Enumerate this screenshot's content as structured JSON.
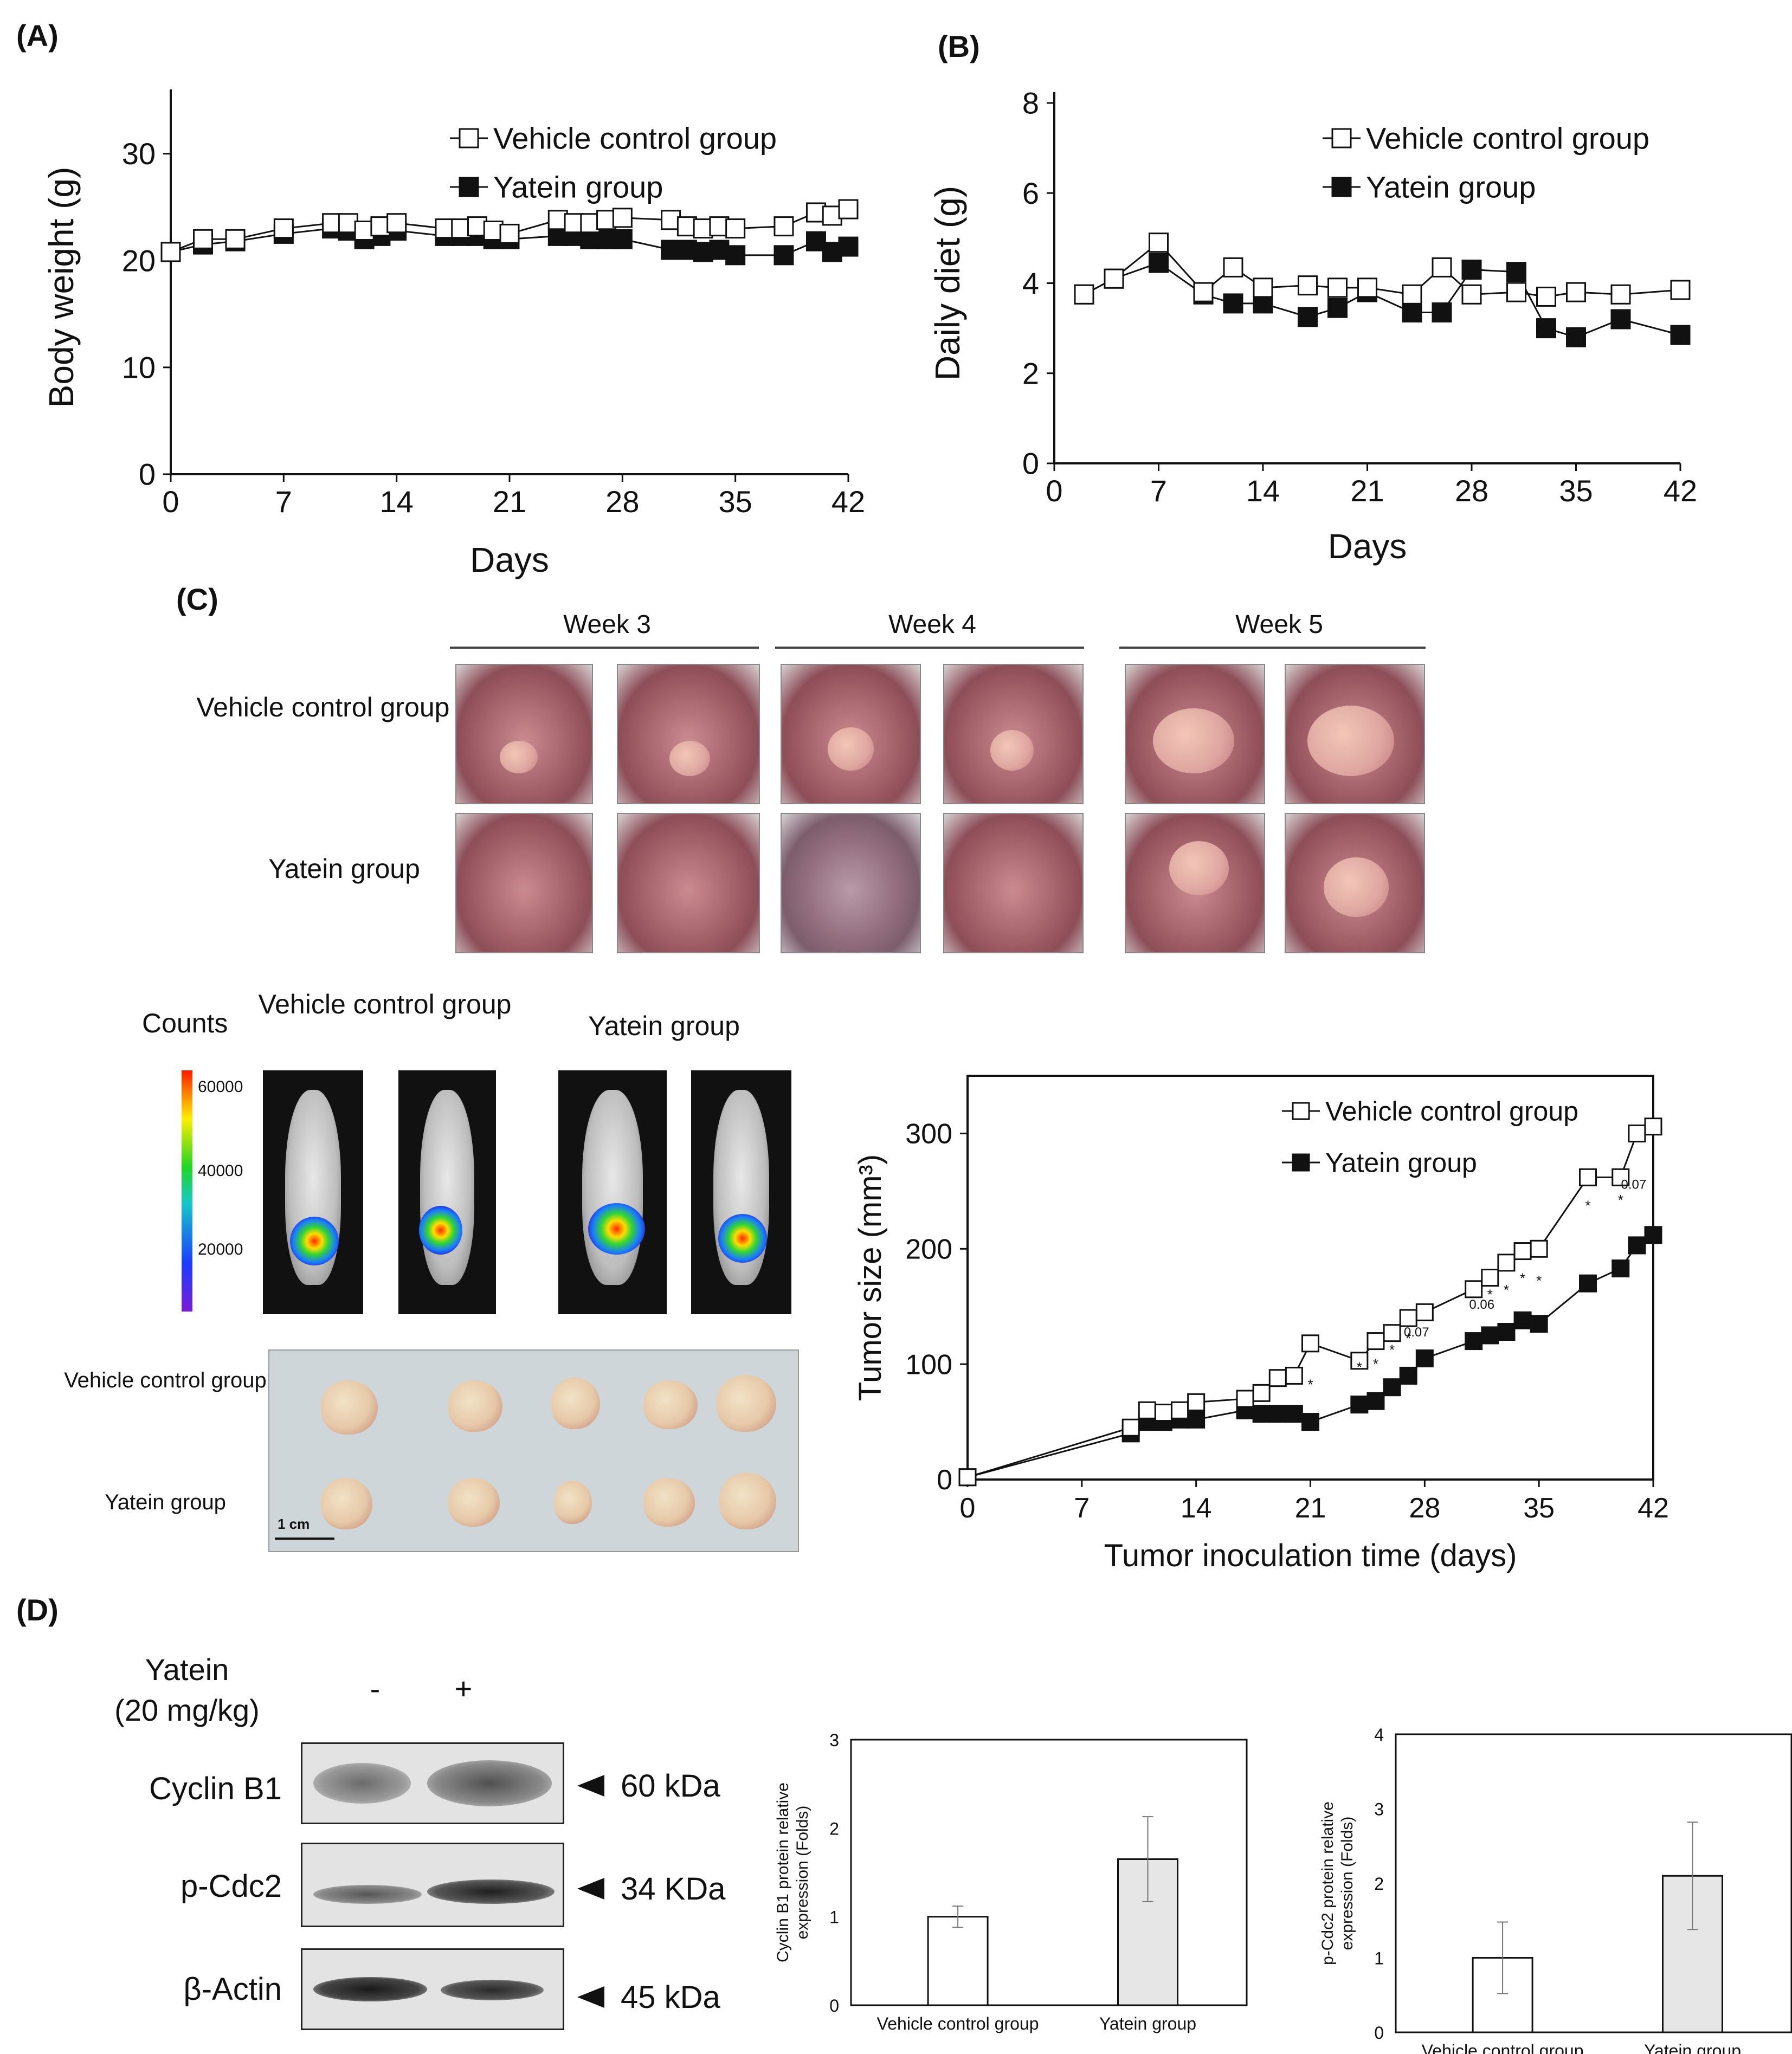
{
  "panel_labels": {
    "A": "(A)",
    "B": "(B)",
    "C": "(C)",
    "D": "(D)"
  },
  "legend": {
    "vehicle": "Vehicle control group",
    "yatein": "Yatein group"
  },
  "panel_c": {
    "weeks": [
      "Week 3",
      "Week 4",
      "Week 5"
    ],
    "rows": [
      "Vehicle  control group",
      "Yatein group"
    ],
    "ivis_title_vehicle": "Vehicle control group",
    "ivis_title_yatein": "Yatein group",
    "counts_label": "Counts",
    "colorbar_ticks": [
      "60000",
      "40000",
      "20000"
    ],
    "tumor_rows": [
      "Vehicle control group",
      "Yatein group"
    ],
    "scale_bar": "1 cm"
  },
  "panel_d": {
    "treatment_label_1": "Yatein",
    "treatment_label_2": "(20 mg/kg)",
    "minus": "-",
    "plus": "+",
    "blots": [
      {
        "name": "Cyclin B1",
        "marker": "60 kDa"
      },
      {
        "name": "p-Cdc2",
        "marker": "34 KDa"
      },
      {
        "name": "β-Actin",
        "marker": "45 kDa"
      }
    ]
  },
  "chart_data": [
    {
      "type": "line",
      "ylabel": "Body weight (g)",
      "xlabel": "Days",
      "xlim": [
        0,
        42
      ],
      "ylim": [
        0,
        35
      ],
      "xticks": [
        0,
        7,
        14,
        21,
        28,
        35,
        42
      ],
      "yticks": [
        0,
        10,
        20,
        30
      ],
      "legend_position": "top-right",
      "series": [
        {
          "name": "Vehicle control group",
          "marker": "open-square",
          "x": [
            0,
            2,
            4,
            7,
            10,
            11,
            12,
            13,
            14,
            17,
            18,
            19,
            20,
            21,
            24,
            25,
            26,
            27,
            28,
            31,
            32,
            33,
            34,
            35,
            38,
            40,
            41,
            42
          ],
          "y": [
            20.8,
            22.0,
            22.0,
            23.0,
            23.5,
            23.5,
            22.8,
            23.2,
            23.5,
            23.0,
            23.0,
            23.2,
            22.8,
            22.5,
            23.8,
            23.5,
            23.5,
            23.8,
            24.0,
            23.8,
            23.2,
            23.0,
            23.2,
            23.0,
            23.2,
            24.5,
            24.2,
            24.8
          ]
        },
        {
          "name": "Yatein group",
          "marker": "filled-square",
          "x": [
            0,
            2,
            4,
            7,
            10,
            11,
            12,
            13,
            14,
            17,
            18,
            19,
            20,
            21,
            24,
            25,
            26,
            27,
            28,
            31,
            32,
            33,
            34,
            35,
            38,
            40,
            41,
            42
          ],
          "y": [
            20.8,
            21.5,
            21.8,
            22.5,
            23.0,
            22.8,
            22.0,
            22.3,
            22.8,
            22.3,
            22.3,
            22.3,
            22.0,
            22.0,
            22.3,
            22.3,
            22.0,
            22.0,
            22.0,
            21.0,
            21.0,
            20.8,
            21.0,
            20.5,
            20.5,
            21.8,
            20.8,
            21.3
          ]
        }
      ]
    },
    {
      "type": "line",
      "ylabel": "Daily diet (g)",
      "xlabel": "Days",
      "xlim": [
        0,
        42
      ],
      "ylim": [
        0,
        8
      ],
      "xticks": [
        0,
        7,
        14,
        21,
        28,
        35,
        42
      ],
      "yticks": [
        0,
        2,
        4,
        6,
        8
      ],
      "legend_position": "top-right",
      "series": [
        {
          "name": "Vehicle control group",
          "marker": "open-square",
          "x": [
            2,
            4,
            7,
            10,
            12,
            14,
            17,
            19,
            21,
            24,
            26,
            28,
            31,
            33,
            35,
            38,
            42
          ],
          "y": [
            3.75,
            4.1,
            4.9,
            3.8,
            4.35,
            3.9,
            3.95,
            3.9,
            3.9,
            3.75,
            4.35,
            3.75,
            3.8,
            3.7,
            3.8,
            3.75,
            3.85
          ]
        },
        {
          "name": "Yatein group",
          "marker": "filled-square",
          "x": [
            2,
            4,
            7,
            10,
            12,
            14,
            17,
            19,
            21,
            24,
            26,
            28,
            31,
            33,
            35,
            38,
            42
          ],
          "y": [
            3.75,
            4.1,
            4.45,
            3.75,
            3.55,
            3.55,
            3.25,
            3.45,
            3.8,
            3.35,
            3.35,
            4.3,
            4.25,
            3.0,
            2.8,
            3.2,
            2.85
          ]
        }
      ]
    },
    {
      "type": "line",
      "ylabel": "Tumor size (mm³)",
      "xlabel": "Tumor inoculation time (days)",
      "xlim": [
        0,
        42
      ],
      "ylim": [
        0,
        350
      ],
      "xticks": [
        0,
        7,
        14,
        21,
        28,
        35,
        42
      ],
      "yticks": [
        0,
        100,
        200,
        300
      ],
      "legend_position": "top-left",
      "annotations": [
        "0.06",
        "0.07",
        "0.07",
        "*"
      ],
      "series": [
        {
          "name": "Vehicle control group",
          "marker": "open-square",
          "x": [
            0,
            10,
            11,
            12,
            13,
            14,
            17,
            18,
            19,
            20,
            21,
            24,
            25,
            26,
            27,
            28,
            31,
            32,
            33,
            34,
            35,
            38,
            40,
            41,
            42
          ],
          "y": [
            2,
            45,
            60,
            58,
            60,
            67,
            70,
            75,
            88,
            90,
            118,
            103,
            120,
            127,
            140,
            145,
            165,
            175,
            188,
            198,
            200,
            262,
            262,
            300,
            306
          ]
        },
        {
          "name": "Yatein group",
          "marker": "filled-square",
          "x": [
            0,
            10,
            11,
            12,
            13,
            14,
            17,
            18,
            19,
            20,
            21,
            24,
            25,
            26,
            27,
            28,
            31,
            32,
            33,
            34,
            35,
            38,
            40,
            41,
            42
          ],
          "y": [
            2,
            40,
            50,
            50,
            52,
            52,
            60,
            57,
            57,
            57,
            50,
            65,
            68,
            80,
            90,
            105,
            120,
            125,
            128,
            138,
            135,
            170,
            183,
            203,
            212
          ]
        }
      ]
    },
    {
      "type": "bar",
      "ylabel": "Cyclin B1 protein relative expression (Folds)",
      "categories": [
        "Vehicle control group",
        "Yatein group"
      ],
      "values": [
        1.0,
        1.65
      ],
      "errors": [
        0.12,
        0.48
      ],
      "ylim": [
        0,
        3
      ],
      "yticks": [
        0,
        1,
        2,
        3
      ]
    },
    {
      "type": "bar",
      "ylabel": "p-Cdc2 protein relative expression (Folds)",
      "categories": [
        "Vehicle control group",
        "Yatein group"
      ],
      "values": [
        1.0,
        2.1
      ],
      "errors": [
        0.48,
        0.72
      ],
      "ylim": [
        0,
        4
      ],
      "yticks": [
        0,
        1,
        2,
        3,
        4
      ]
    }
  ]
}
